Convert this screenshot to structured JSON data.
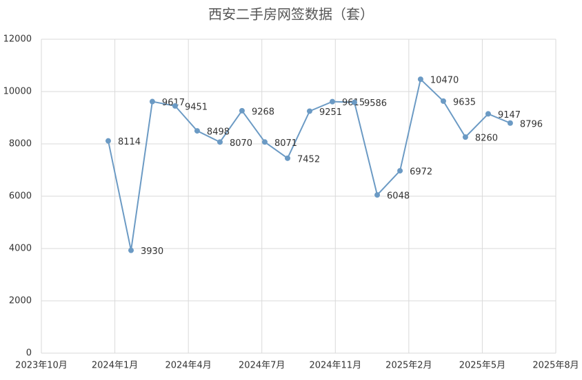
{
  "chart_data": {
    "type": "line",
    "title": "西安二手房网签数据（套）",
    "x": [
      91,
      122,
      151,
      182,
      212,
      243,
      273,
      304,
      335,
      365,
      396,
      426,
      457,
      488,
      516,
      547,
      577,
      608,
      638
    ],
    "series": [
      {
        "color": "#6b9ac4",
        "values": [
          8114,
          3930,
          9617,
          9451,
          8498,
          8070,
          9268,
          8071,
          7452,
          9251,
          9615,
          9586,
          6048,
          6972,
          10470,
          9635,
          8260,
          9147,
          8796
        ]
      }
    ],
    "xlim": [
      0,
      700
    ],
    "xticks": [
      {
        "value": 0,
        "label": "2023年10月"
      },
      {
        "value": 100,
        "label": "2024年1月"
      },
      {
        "value": 200,
        "label": "2024年4月"
      },
      {
        "value": 300,
        "label": "2024年7月"
      },
      {
        "value": 400,
        "label": "2024年11月"
      },
      {
        "value": 500,
        "label": "2025年2月"
      },
      {
        "value": 600,
        "label": "2025年5月"
      },
      {
        "value": 700,
        "label": "2025年8月"
      }
    ],
    "ylim": [
      0,
      12000
    ],
    "yticks": [
      0,
      2000,
      4000,
      6000,
      8000,
      10000,
      12000
    ],
    "grid": true
  }
}
